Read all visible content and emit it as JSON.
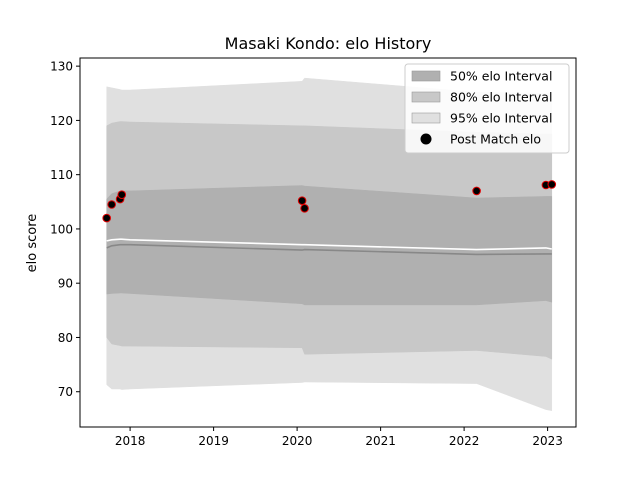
{
  "chart_data": {
    "type": "area",
    "title": "Masaki Kondo: elo History",
    "xlabel": "",
    "ylabel": "elo score",
    "xlim": [
      2017.4,
      2023.34
    ],
    "ylim": [
      63.5,
      131.5
    ],
    "x_ticks": [
      2018,
      2019,
      2020,
      2021,
      2022,
      2023
    ],
    "x_tick_labels": [
      "2018",
      "2019",
      "2020",
      "2021",
      "2022",
      "2023"
    ],
    "y_ticks": [
      70,
      80,
      90,
      100,
      110,
      120,
      130
    ],
    "y_tick_labels": [
      "70",
      "80",
      "90",
      "100",
      "110",
      "120",
      "130"
    ],
    "grid": false,
    "legend_position": "top-right",
    "x": [
      2017.72,
      2017.78,
      2017.88,
      2017.9,
      2018.0,
      2020.06,
      2020.09,
      2022.15,
      2022.98,
      2023.05
    ],
    "series": [
      {
        "name": "50% elo Interval",
        "color": "#b0b0b0",
        "lower": [
          88.0,
          88.1,
          88.2,
          88.2,
          88.1,
          86.2,
          86.0,
          86.0,
          86.8,
          86.5
        ],
        "upper": [
          105.5,
          106.5,
          107.0,
          107.0,
          107.0,
          108.0,
          107.9,
          105.7,
          106.0,
          106.0
        ]
      },
      {
        "name": "80% elo Interval",
        "color": "#c8c8c8",
        "lower": [
          80.0,
          78.8,
          78.5,
          78.4,
          78.4,
          78.1,
          76.9,
          77.6,
          76.5,
          76.0
        ],
        "upper": [
          119.0,
          119.5,
          119.8,
          119.8,
          119.7,
          119.0,
          119.0,
          117.8,
          117.5,
          117.5
        ]
      },
      {
        "name": "95% elo Interval",
        "color": "#e0e0e0",
        "lower": [
          71.3,
          70.5,
          70.5,
          70.4,
          70.5,
          71.7,
          71.8,
          71.5,
          66.7,
          66.5
        ],
        "upper": [
          126.2,
          126.0,
          125.7,
          125.6,
          125.6,
          127.2,
          127.8,
          125.2,
          125.0,
          125.0
        ]
      },
      {
        "name": "Post Match elo",
        "type": "scatter",
        "color": "#000000",
        "edge_color": "#e00000",
        "x": [
          2017.72,
          2017.78,
          2017.88,
          2017.9,
          2020.06,
          2020.09,
          2022.15,
          2022.98,
          2023.05
        ],
        "values": [
          102.0,
          104.5,
          105.5,
          106.3,
          105.2,
          103.8,
          107.0,
          108.1,
          108.2
        ]
      }
    ],
    "mean_line": {
      "color": "#888888",
      "values": [
        96.5,
        96.9,
        97.1,
        97.1,
        97.1,
        96.1,
        96.2,
        95.3,
        95.4,
        95.4
      ]
    },
    "highlight_line": {
      "color": "#ffffff",
      "values": [
        97.8,
        98.0,
        98.1,
        98.1,
        98.0,
        97.1,
        97.1,
        96.2,
        96.5,
        96.3
      ]
    }
  }
}
